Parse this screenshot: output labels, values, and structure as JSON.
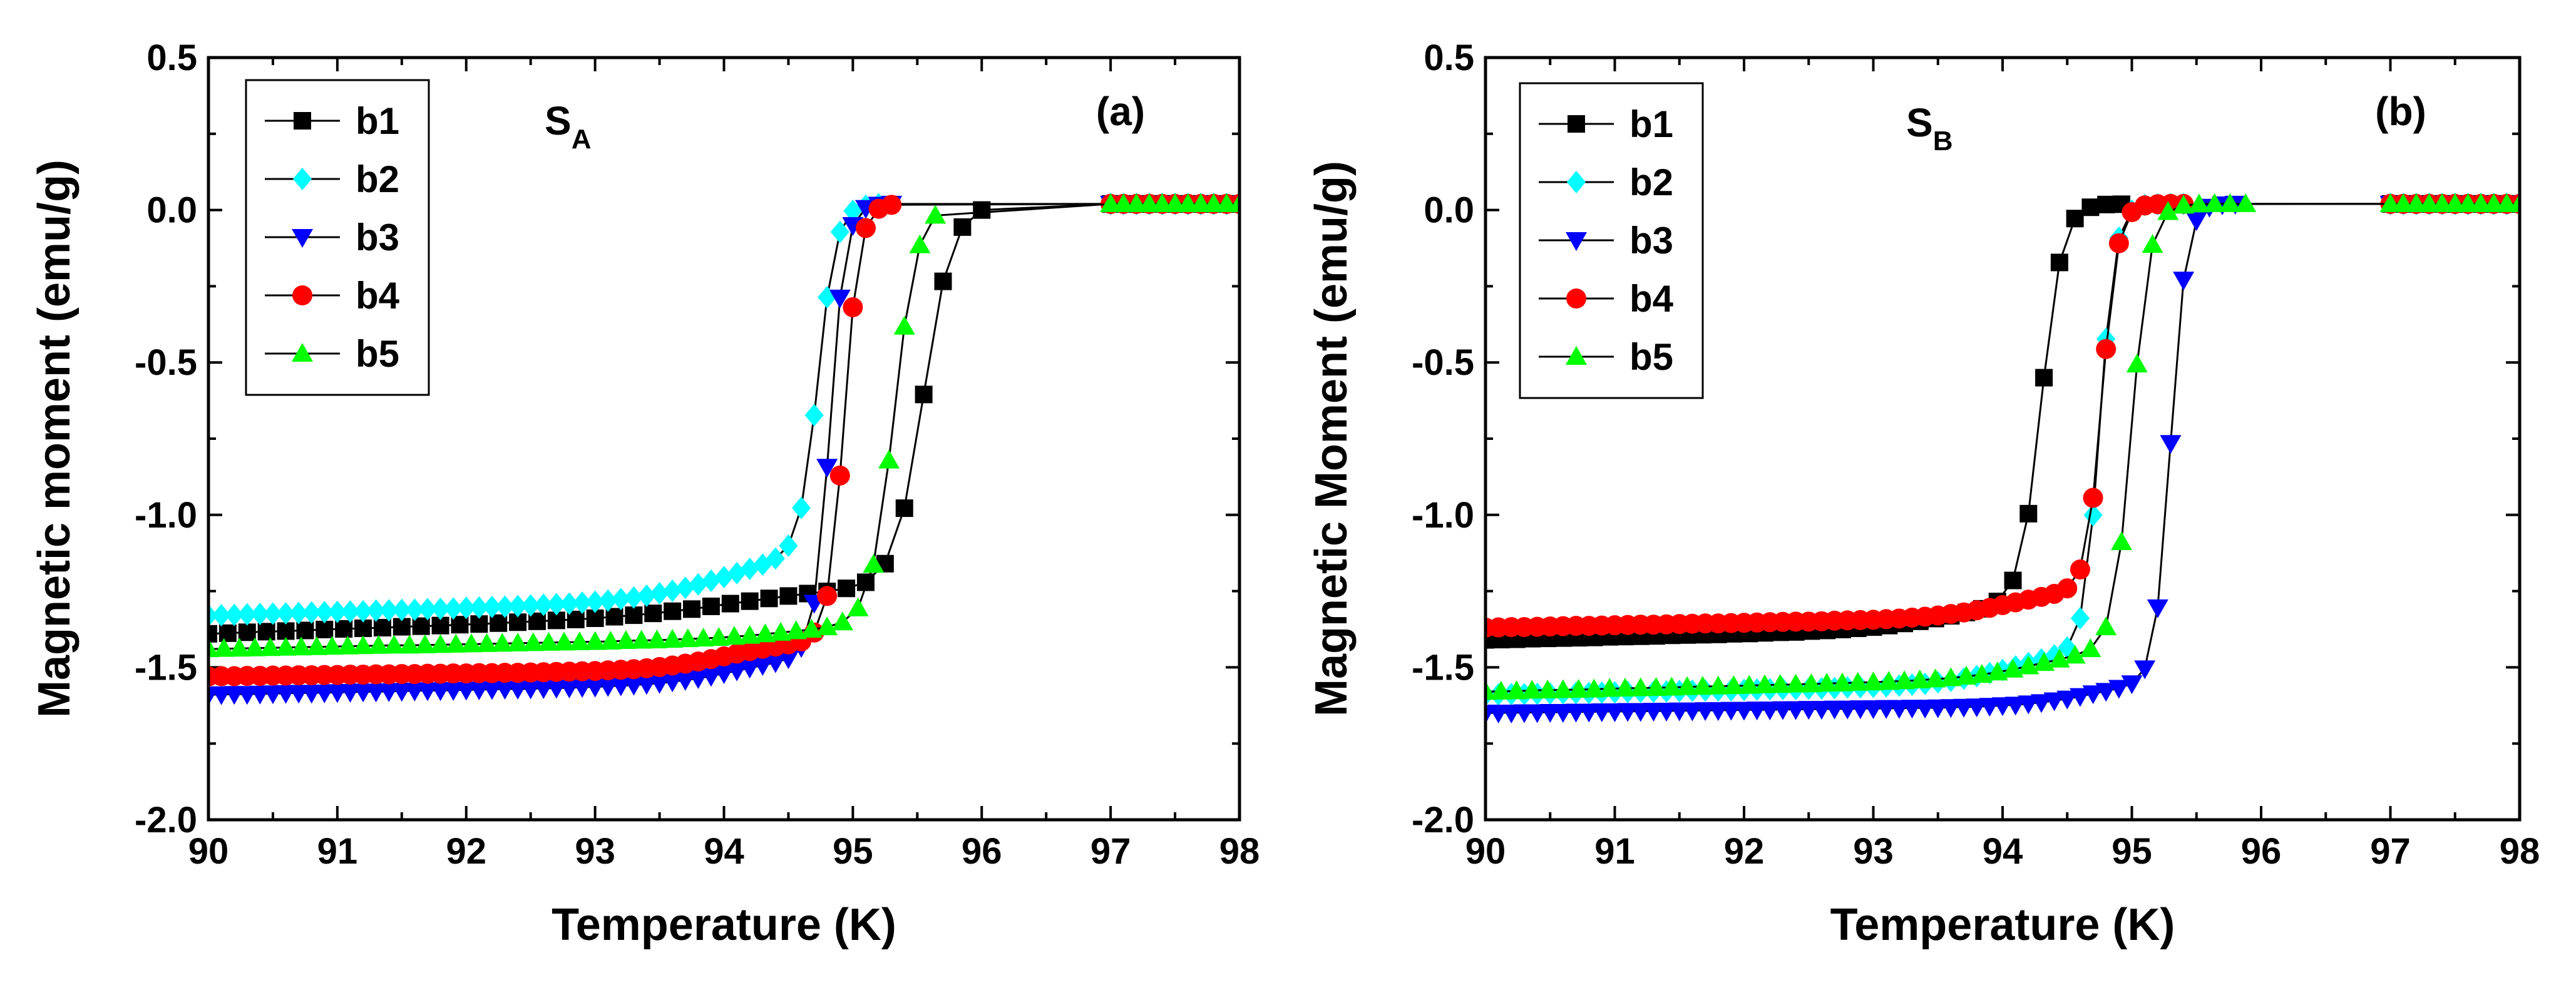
{
  "chart_data": [
    {
      "type": "scatter",
      "panel_label": "(a)",
      "sample_label": {
        "main": "S",
        "sub": "A"
      },
      "xlabel": "Temperature (K)",
      "ylabel": "Magnetic moment (emu/g)",
      "xlim": [
        90,
        98
      ],
      "ylim": [
        -2.0,
        0.5
      ],
      "xticks": [
        90,
        91,
        92,
        93,
        94,
        95,
        96,
        97,
        98
      ],
      "yticks": [
        -2.0,
        -1.5,
        -1.0,
        -0.5,
        0.0,
        0.5
      ],
      "ytick_labels": [
        "-2.0",
        "-1.5",
        "-1.0",
        "-0.5",
        "0.0",
        "0.5"
      ],
      "legend_position": "top-left",
      "series": [
        {
          "name": "b1",
          "color": "#000000",
          "marker": "square",
          "start": -1.39,
          "base_slope": 0.015,
          "tail_amp": 0.08,
          "tail_center": 94.1,
          "tail_width": 0.45,
          "tc": 95.55,
          "width": 0.11,
          "t_end": 96.0,
          "step": 0.15,
          "t_min": 90.0
        },
        {
          "name": "b2",
          "color": "#00ffff",
          "marker": "diamond",
          "start": -1.33,
          "base_slope": 0.012,
          "tail_amp": 0.18,
          "tail_center": 94.1,
          "tail_width": 0.38,
          "tc": 94.73,
          "width": 0.07,
          "t_end": 95.2,
          "step": 0.1,
          "t_min": 90.0
        },
        {
          "name": "b3",
          "color": "#0000ff",
          "marker": "triangle-down",
          "start": -1.59,
          "base_slope": 0.008,
          "tail_amp": 0.1,
          "tail_center": 94.15,
          "tail_width": 0.3,
          "tc": 94.82,
          "width": 0.06,
          "t_end": 95.3,
          "step": 0.1,
          "t_min": 90.0
        },
        {
          "name": "b4",
          "color": "#ff0000",
          "marker": "circle",
          "start": -1.53,
          "base_slope": 0.005,
          "tail_amp": 0.1,
          "tail_center": 94.05,
          "tail_width": 0.3,
          "tc": 94.93,
          "width": 0.06,
          "t_end": 95.3,
          "step": 0.1,
          "t_min": 90.0
        },
        {
          "name": "b5",
          "color": "#00ff00",
          "marker": "triangle-up",
          "start": -1.44,
          "base_slope": 0.008,
          "tail_amp": 0.04,
          "tail_center": 94.5,
          "tail_width": 0.3,
          "tc": 95.32,
          "width": 0.09,
          "t_end": 95.7,
          "step": 0.12,
          "t_min": 90.0
        }
      ]
    },
    {
      "type": "scatter",
      "panel_label": "(b)",
      "sample_label": {
        "main": "S",
        "sub": "B"
      },
      "xlabel": "Temperature (K)",
      "ylabel": "Magnetic Moment (emu/g)",
      "xlim": [
        90,
        98
      ],
      "ylim": [
        -2.0,
        0.5
      ],
      "xticks": [
        90,
        91,
        92,
        93,
        94,
        95,
        96,
        97,
        98
      ],
      "yticks": [
        -2.0,
        -1.5,
        -1.0,
        -0.5,
        0.0,
        0.5
      ],
      "ytick_labels": [
        "-2.0",
        "-1.5",
        "-1.0",
        "-0.5",
        "0.0",
        "0.5"
      ],
      "legend_position": "top-left",
      "series": [
        {
          "name": "b1",
          "color": "#000000",
          "marker": "square",
          "start": -1.41,
          "base_slope": 0.01,
          "tail_amp": 0.1,
          "tail_center": 93.7,
          "tail_width": 0.35,
          "tc": 94.3,
          "width": 0.08,
          "t_end": 95.0,
          "step": 0.12,
          "t_min": 90.0
        },
        {
          "name": "b2",
          "color": "#00ffff",
          "marker": "diamond",
          "start": -1.59,
          "base_slope": 0.008,
          "tail_amp": 0.12,
          "tail_center": 94.1,
          "tail_width": 0.28,
          "tc": 94.75,
          "width": 0.06,
          "t_end": 95.4,
          "step": 0.1,
          "t_min": 90.0
        },
        {
          "name": "b3",
          "color": "#0000ff",
          "marker": "triangle-down",
          "start": -1.65,
          "base_slope": 0.005,
          "tail_amp": 0.08,
          "tail_center": 94.7,
          "tail_width": 0.25,
          "tc": 95.3,
          "width": 0.06,
          "t_end": 95.8,
          "step": 0.1,
          "t_min": 90.0
        },
        {
          "name": "b4",
          "color": "#ff0000",
          "marker": "circle",
          "start": -1.37,
          "base_slope": 0.008,
          "tail_amp": 0.1,
          "tail_center": 94.1,
          "tail_width": 0.3,
          "tc": 94.77,
          "width": 0.06,
          "t_end": 95.4,
          "step": 0.1,
          "t_min": 90.0
        },
        {
          "name": "b5",
          "color": "#00ff00",
          "marker": "triangle-up",
          "start": -1.58,
          "base_slope": 0.01,
          "tail_amp": 0.1,
          "tail_center": 94.3,
          "tail_width": 0.3,
          "tc": 95.0,
          "width": 0.07,
          "t_end": 95.9,
          "step": 0.12,
          "t_min": 90.0
        }
      ]
    }
  ]
}
